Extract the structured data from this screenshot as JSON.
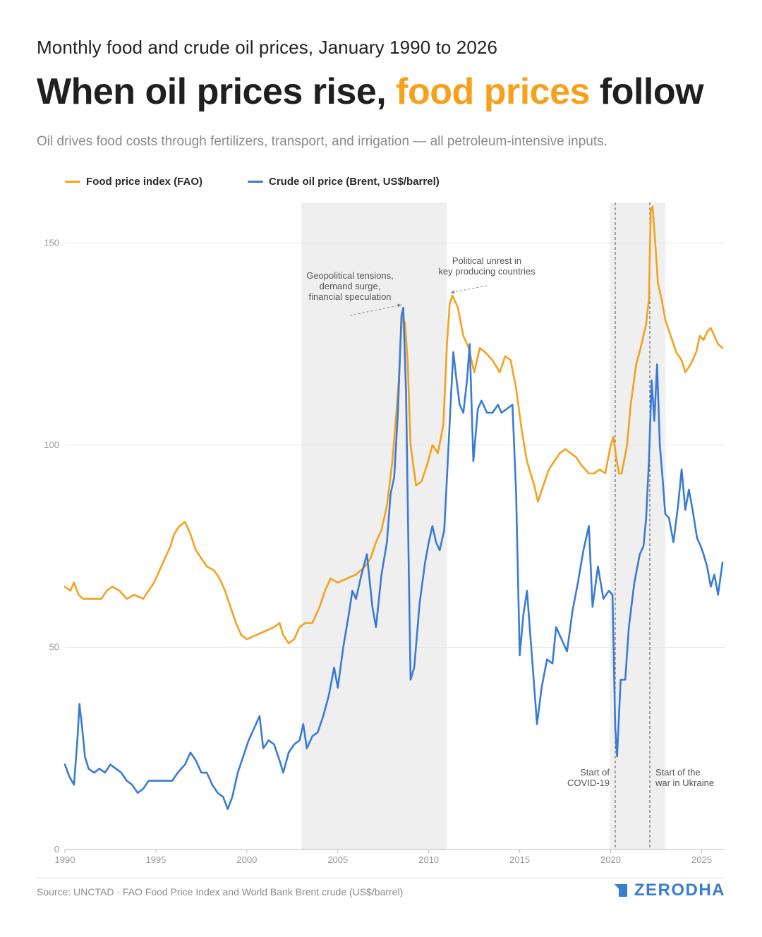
{
  "header": {
    "kicker": "Monthly food and crude oil prices, January 1990 to 2026",
    "title_part1": "When oil prices rise, ",
    "title_accent": "food prices",
    "title_part2": " follow",
    "subtitle": "Oil drives food costs through fertilizers, transport, and irrigation — all petroleum-intensive inputs."
  },
  "legend": {
    "food_label": "Food price index (FAO)",
    "oil_label": "Crude oil price (Brent, US$/barrel)"
  },
  "footer": {
    "source": "Source: UNCTAD · FAO Food Price Index and World Bank Brent crude (US$/barrel)",
    "brand": "ZERODHA"
  },
  "colors": {
    "food": "#F5A11C",
    "oil": "#3A7BD5",
    "shade": "#EFEFEF",
    "grid": "#E6E6E6",
    "axis_text": "#9A9A9A",
    "annotation_text": "#555555",
    "brand": "#387ED1"
  },
  "chart_data": {
    "type": "line",
    "xlim": [
      1990,
      2026.3
    ],
    "ylim": [
      0,
      160
    ],
    "y_ticks": [
      0,
      50,
      100,
      150
    ],
    "x_ticks": [
      1990,
      1995,
      2000,
      2005,
      2010,
      2015,
      2020,
      2025
    ],
    "grid": "horizontal",
    "legend_position": "top-left",
    "shaded_periods": [
      {
        "start": 2003.0,
        "end": 2011.0
      },
      {
        "start": 2019.95,
        "end": 2023.0
      }
    ],
    "event_lines": [
      {
        "x": 2020.25,
        "label_lines": [
          "Start of",
          "COVID-19"
        ],
        "label_side": "left"
      },
      {
        "x": 2022.15,
        "label_lines": [
          "Start of the",
          "war in Ukraine"
        ],
        "label_side": "right"
      }
    ],
    "annotations": [
      {
        "label_lines": [
          "Geopolitical tensions,",
          "demand surge,",
          "financial speculation"
        ],
        "target": [
          2008.5,
          134
        ]
      },
      {
        "label_lines": [
          "Political unrest in",
          "key producing countries"
        ],
        "target": [
          2011.2,
          137
        ]
      }
    ],
    "series": [
      {
        "name": "Food price index (FAO)",
        "key": "food",
        "points": [
          [
            1990.0,
            65
          ],
          [
            1990.3,
            64
          ],
          [
            1990.5,
            66
          ],
          [
            1990.75,
            63
          ],
          [
            1991.0,
            62
          ],
          [
            1991.5,
            62
          ],
          [
            1992.0,
            62
          ],
          [
            1992.3,
            64
          ],
          [
            1992.6,
            65
          ],
          [
            1993.0,
            64
          ],
          [
            1993.4,
            62
          ],
          [
            1993.8,
            63
          ],
          [
            1994.3,
            62
          ],
          [
            1994.6,
            64
          ],
          [
            1994.9,
            66
          ],
          [
            1995.2,
            69
          ],
          [
            1995.5,
            72
          ],
          [
            1995.8,
            75
          ],
          [
            1996.0,
            78
          ],
          [
            1996.3,
            80
          ],
          [
            1996.6,
            81
          ],
          [
            1996.9,
            78
          ],
          [
            1997.2,
            74
          ],
          [
            1997.5,
            72
          ],
          [
            1997.8,
            70
          ],
          [
            1998.2,
            69
          ],
          [
            1998.5,
            67
          ],
          [
            1998.8,
            64
          ],
          [
            1999.1,
            60
          ],
          [
            1999.4,
            56
          ],
          [
            1999.7,
            53
          ],
          [
            2000.0,
            52
          ],
          [
            2000.5,
            53
          ],
          [
            2001.0,
            54
          ],
          [
            2001.5,
            55
          ],
          [
            2001.8,
            56
          ],
          [
            2002.0,
            53
          ],
          [
            2002.3,
            51
          ],
          [
            2002.6,
            52
          ],
          [
            2002.9,
            55
          ],
          [
            2003.2,
            56
          ],
          [
            2003.6,
            56
          ],
          [
            2004.0,
            60
          ],
          [
            2004.3,
            64
          ],
          [
            2004.6,
            67
          ],
          [
            2005.0,
            66
          ],
          [
            2005.5,
            67
          ],
          [
            2006.0,
            68
          ],
          [
            2006.5,
            70
          ],
          [
            2006.8,
            72
          ],
          [
            2007.1,
            76
          ],
          [
            2007.4,
            79
          ],
          [
            2007.7,
            85
          ],
          [
            2008.0,
            96
          ],
          [
            2008.2,
            107
          ],
          [
            2008.35,
            116
          ],
          [
            2008.45,
            126
          ],
          [
            2008.55,
            132
          ],
          [
            2008.7,
            130
          ],
          [
            2008.85,
            120
          ],
          [
            2009.0,
            100
          ],
          [
            2009.3,
            90
          ],
          [
            2009.6,
            91
          ],
          [
            2009.9,
            95
          ],
          [
            2010.2,
            100
          ],
          [
            2010.5,
            98
          ],
          [
            2010.8,
            105
          ],
          [
            2011.0,
            125
          ],
          [
            2011.15,
            135
          ],
          [
            2011.3,
            137
          ],
          [
            2011.6,
            134
          ],
          [
            2011.9,
            127
          ],
          [
            2012.2,
            124
          ],
          [
            2012.5,
            118
          ],
          [
            2012.8,
            124
          ],
          [
            2013.1,
            123
          ],
          [
            2013.5,
            121
          ],
          [
            2013.9,
            118
          ],
          [
            2014.2,
            122
          ],
          [
            2014.5,
            121
          ],
          [
            2014.8,
            114
          ],
          [
            2015.1,
            104
          ],
          [
            2015.4,
            96
          ],
          [
            2015.8,
            90
          ],
          [
            2016.0,
            86
          ],
          [
            2016.3,
            90
          ],
          [
            2016.6,
            94
          ],
          [
            2016.9,
            96
          ],
          [
            2017.2,
            98
          ],
          [
            2017.5,
            99
          ],
          [
            2017.8,
            98
          ],
          [
            2018.1,
            97
          ],
          [
            2018.4,
            95
          ],
          [
            2018.8,
            93
          ],
          [
            2019.1,
            93
          ],
          [
            2019.4,
            94
          ],
          [
            2019.7,
            93
          ],
          [
            2020.0,
            100
          ],
          [
            2020.15,
            102
          ],
          [
            2020.3,
            97
          ],
          [
            2020.45,
            93
          ],
          [
            2020.6,
            93
          ],
          [
            2020.9,
            100
          ],
          [
            2021.1,
            110
          ],
          [
            2021.4,
            120
          ],
          [
            2021.7,
            125
          ],
          [
            2021.95,
            130
          ],
          [
            2022.1,
            136
          ],
          [
            2022.2,
            158
          ],
          [
            2022.3,
            159
          ],
          [
            2022.45,
            150
          ],
          [
            2022.6,
            140
          ],
          [
            2022.8,
            136
          ],
          [
            2023.0,
            131
          ],
          [
            2023.3,
            127
          ],
          [
            2023.6,
            123
          ],
          [
            2023.9,
            121
          ],
          [
            2024.1,
            118
          ],
          [
            2024.4,
            120
          ],
          [
            2024.7,
            123
          ],
          [
            2024.9,
            127
          ],
          [
            2025.1,
            126
          ],
          [
            2025.3,
            128
          ],
          [
            2025.5,
            129
          ],
          [
            2025.7,
            127
          ],
          [
            2025.9,
            125
          ],
          [
            2026.15,
            124
          ]
        ]
      },
      {
        "name": "Crude oil price (Brent, US$/barrel)",
        "key": "oil",
        "points": [
          [
            1990.0,
            21
          ],
          [
            1990.25,
            18
          ],
          [
            1990.5,
            16
          ],
          [
            1990.7,
            28
          ],
          [
            1990.8,
            36
          ],
          [
            1990.95,
            30
          ],
          [
            1991.1,
            23
          ],
          [
            1991.3,
            20
          ],
          [
            1991.6,
            19
          ],
          [
            1991.9,
            20
          ],
          [
            1992.2,
            19
          ],
          [
            1992.5,
            21
          ],
          [
            1992.8,
            20
          ],
          [
            1993.1,
            19
          ],
          [
            1993.4,
            17
          ],
          [
            1993.7,
            16
          ],
          [
            1994.0,
            14
          ],
          [
            1994.3,
            15
          ],
          [
            1994.6,
            17
          ],
          [
            1994.9,
            17
          ],
          [
            1995.2,
            17
          ],
          [
            1995.6,
            17
          ],
          [
            1995.9,
            17
          ],
          [
            1996.2,
            19
          ],
          [
            1996.6,
            21
          ],
          [
            1996.9,
            24
          ],
          [
            1997.2,
            22
          ],
          [
            1997.5,
            19
          ],
          [
            1997.8,
            19
          ],
          [
            1998.1,
            16
          ],
          [
            1998.4,
            14
          ],
          [
            1998.7,
            13
          ],
          [
            1998.95,
            10
          ],
          [
            1999.2,
            13
          ],
          [
            1999.5,
            19
          ],
          [
            1999.8,
            23
          ],
          [
            2000.1,
            27
          ],
          [
            2000.4,
            30
          ],
          [
            2000.7,
            33
          ],
          [
            2000.9,
            25
          ],
          [
            2001.2,
            27
          ],
          [
            2001.5,
            26
          ],
          [
            2001.8,
            22
          ],
          [
            2002.0,
            19
          ],
          [
            2002.3,
            24
          ],
          [
            2002.6,
            26
          ],
          [
            2002.9,
            27
          ],
          [
            2003.1,
            31
          ],
          [
            2003.3,
            25
          ],
          [
            2003.6,
            28
          ],
          [
            2003.9,
            29
          ],
          [
            2004.2,
            33
          ],
          [
            2004.5,
            38
          ],
          [
            2004.8,
            45
          ],
          [
            2005.0,
            40
          ],
          [
            2005.3,
            50
          ],
          [
            2005.6,
            58
          ],
          [
            2005.8,
            64
          ],
          [
            2006.0,
            62
          ],
          [
            2006.3,
            68
          ],
          [
            2006.6,
            73
          ],
          [
            2006.9,
            60
          ],
          [
            2007.1,
            55
          ],
          [
            2007.4,
            68
          ],
          [
            2007.7,
            76
          ],
          [
            2007.9,
            88
          ],
          [
            2008.1,
            92
          ],
          [
            2008.3,
            108
          ],
          [
            2008.5,
            132
          ],
          [
            2008.6,
            134
          ],
          [
            2008.75,
            113
          ],
          [
            2008.9,
            70
          ],
          [
            2009.0,
            42
          ],
          [
            2009.2,
            45
          ],
          [
            2009.5,
            61
          ],
          [
            2009.8,
            71
          ],
          [
            2010.0,
            76
          ],
          [
            2010.2,
            80
          ],
          [
            2010.4,
            76
          ],
          [
            2010.6,
            74
          ],
          [
            2010.85,
            79
          ],
          [
            2011.0,
            92
          ],
          [
            2011.2,
            110
          ],
          [
            2011.35,
            123
          ],
          [
            2011.5,
            117
          ],
          [
            2011.7,
            110
          ],
          [
            2011.9,
            108
          ],
          [
            2012.1,
            116
          ],
          [
            2012.25,
            125
          ],
          [
            2012.45,
            96
          ],
          [
            2012.7,
            109
          ],
          [
            2012.9,
            111
          ],
          [
            2013.2,
            108
          ],
          [
            2013.5,
            108
          ],
          [
            2013.8,
            110
          ],
          [
            2014.0,
            108
          ],
          [
            2014.3,
            109
          ],
          [
            2014.6,
            110
          ],
          [
            2014.8,
            88
          ],
          [
            2015.0,
            48
          ],
          [
            2015.2,
            58
          ],
          [
            2015.4,
            64
          ],
          [
            2015.7,
            46
          ],
          [
            2015.95,
            31
          ],
          [
            2016.2,
            40
          ],
          [
            2016.5,
            47
          ],
          [
            2016.8,
            46
          ],
          [
            2017.0,
            55
          ],
          [
            2017.3,
            52
          ],
          [
            2017.6,
            49
          ],
          [
            2017.9,
            59
          ],
          [
            2018.2,
            66
          ],
          [
            2018.5,
            74
          ],
          [
            2018.8,
            80
          ],
          [
            2019.0,
            60
          ],
          [
            2019.3,
            70
          ],
          [
            2019.6,
            62
          ],
          [
            2019.9,
            64
          ],
          [
            2020.1,
            63
          ],
          [
            2020.25,
            30
          ],
          [
            2020.35,
            23
          ],
          [
            2020.55,
            42
          ],
          [
            2020.8,
            42
          ],
          [
            2021.0,
            55
          ],
          [
            2021.3,
            66
          ],
          [
            2021.6,
            73
          ],
          [
            2021.8,
            75
          ],
          [
            2021.95,
            82
          ],
          [
            2022.1,
            96
          ],
          [
            2022.25,
            116
          ],
          [
            2022.4,
            106
          ],
          [
            2022.55,
            120
          ],
          [
            2022.7,
            100
          ],
          [
            2022.85,
            92
          ],
          [
            2023.0,
            83
          ],
          [
            2023.2,
            82
          ],
          [
            2023.45,
            76
          ],
          [
            2023.7,
            85
          ],
          [
            2023.9,
            94
          ],
          [
            2024.1,
            84
          ],
          [
            2024.3,
            89
          ],
          [
            2024.5,
            84
          ],
          [
            2024.75,
            77
          ],
          [
            2024.95,
            75
          ],
          [
            2025.1,
            73
          ],
          [
            2025.3,
            70
          ],
          [
            2025.5,
            65
          ],
          [
            2025.7,
            68
          ],
          [
            2025.9,
            63
          ],
          [
            2026.15,
            71
          ]
        ]
      }
    ]
  }
}
